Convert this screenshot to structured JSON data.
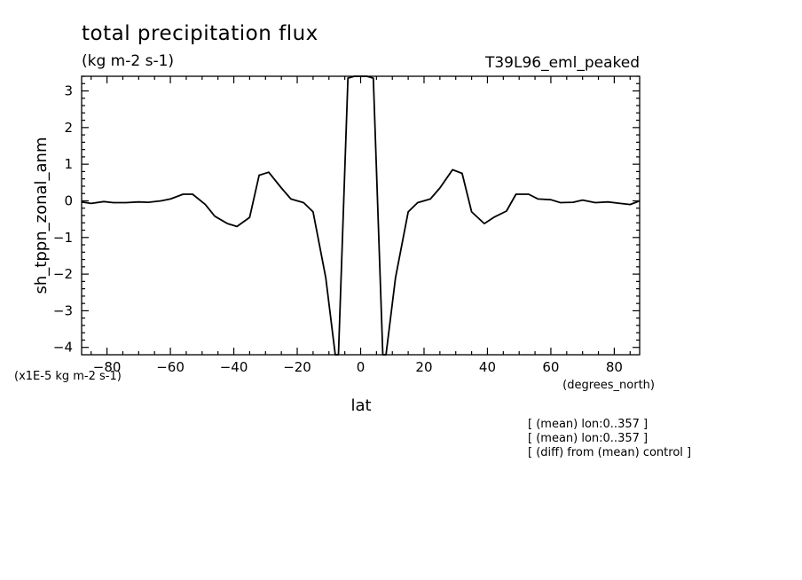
{
  "header": {
    "title": "total precipitation flux",
    "units": "(kg m-2 s-1)",
    "run": "T39L96_eml_peaked",
    "scale_note": "(x1E-5 kg m-2 s-1)"
  },
  "notes": [
    "[ (mean) lon:0..357 ]",
    "[ (mean) lon:0..357 ]",
    "[ (diff) from (mean) control ]"
  ],
  "chart_data": {
    "type": "line",
    "title": "total precipitation flux",
    "xlabel": "lat",
    "xlabel_units": "(degrees_north)",
    "ylabel": "sh_tppn_zonal_anm",
    "xlim": [
      -88,
      88
    ],
    "ylim": [
      -4.2,
      3.4
    ],
    "xticks": [
      -80,
      -60,
      -40,
      -20,
      0,
      20,
      40,
      60,
      80
    ],
    "yticks": [
      -4,
      -3,
      -2,
      -1,
      0,
      1,
      2,
      3
    ],
    "series": [
      {
        "x": [
          -88,
          -85,
          -81,
          -78,
          -74,
          -70,
          -67,
          -63,
          -60,
          -56,
          -53,
          -49,
          -46,
          -42,
          -39,
          -35,
          -32,
          -29,
          -25,
          -22,
          -18,
          -15,
          -11,
          -8,
          -7,
          -4,
          -2,
          0,
          2,
          4,
          7,
          8,
          11,
          15,
          18,
          22,
          25,
          29,
          32,
          35,
          39,
          42,
          46,
          49,
          53,
          56,
          60,
          63,
          67,
          70,
          74,
          78,
          81,
          85,
          88
        ],
        "y": [
          -0.03,
          -0.07,
          -0.02,
          -0.05,
          -0.05,
          -0.03,
          -0.04,
          0.0,
          0.05,
          0.18,
          0.18,
          -0.1,
          -0.42,
          -0.62,
          -0.7,
          -0.45,
          0.7,
          0.78,
          0.35,
          0.05,
          -0.05,
          -0.3,
          -2.1,
          -4.2,
          -4.2,
          3.35,
          3.4,
          3.4,
          3.4,
          3.35,
          -4.2,
          -4.2,
          -2.1,
          -0.3,
          -0.05,
          0.05,
          0.35,
          0.85,
          0.75,
          -0.3,
          -0.62,
          -0.45,
          -0.28,
          0.18,
          0.18,
          0.05,
          0.03,
          -0.05,
          -0.04,
          0.02,
          -0.05,
          -0.03,
          -0.06,
          -0.1,
          0.0
        ]
      }
    ]
  }
}
